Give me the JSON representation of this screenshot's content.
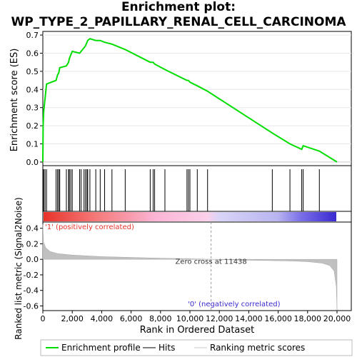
{
  "chart_data": {
    "type": "line",
    "title_line1": "Enrichment plot:",
    "title_line2": "WP_TYPE_2_PAPILLARY_RENAL_CELL_CARCINOMA",
    "xlabel": "Rank in Ordered Dataset",
    "ylabel_top": "Enrichment score (ES)",
    "ylabel_bottom": "Ranked list metric (Signal2Noise)",
    "x_ticks": [
      0,
      2000,
      4000,
      6000,
      8000,
      10000,
      12000,
      14000,
      16000,
      18000,
      20000
    ],
    "x_tick_labels": [
      "0",
      "2,000",
      "4,000",
      "6,000",
      "8,000",
      "10,000",
      "12,000",
      "14,000",
      "16,000",
      "18,000",
      "20,000"
    ],
    "xlim": [
      0,
      20000
    ],
    "es_ticks": [
      0.0,
      0.1,
      0.2,
      0.3,
      0.4,
      0.5,
      0.6,
      0.7
    ],
    "es_tick_labels": [
      "0.0",
      "0.1",
      "0.2",
      "0.3",
      "0.4",
      "0.5",
      "0.6",
      "0.7"
    ],
    "es_ylim": [
      -0.02,
      0.72
    ],
    "metric_ticks": [
      0.4,
      0.2,
      0.0,
      -0.2,
      -0.4,
      -0.6
    ],
    "metric_tick_labels": [
      "0.4",
      "0.2",
      "0.0",
      "-0.2",
      "-0.4",
      "-0.6"
    ],
    "metric_ylim": [
      -0.66,
      0.48
    ],
    "hits": [
      20,
      60,
      150,
      250,
      900,
      1000,
      1080,
      1150,
      1600,
      1750,
      1800,
      1900,
      2000,
      2500,
      2600,
      2800,
      2900,
      3000,
      3050,
      3200,
      3600,
      3900,
      4200,
      4700,
      5600,
      7300,
      7500,
      7600,
      8300,
      9800,
      9900,
      10000,
      10500,
      11200,
      15600,
      16800,
      17600,
      17700,
      18800
    ],
    "es_series": {
      "name": "Enrichment profile",
      "x": [
        0,
        20,
        60,
        150,
        250,
        900,
        1000,
        1080,
        1150,
        1600,
        1750,
        1800,
        1900,
        2000,
        2500,
        2600,
        2800,
        2900,
        3000,
        3050,
        3200,
        3600,
        3900,
        4200,
        4700,
        5600,
        7300,
        7500,
        7600,
        8300,
        9800,
        9900,
        10000,
        10500,
        11200,
        15600,
        16800,
        17600,
        17700,
        18800,
        20000
      ],
      "y": [
        0.0,
        0.2,
        0.28,
        0.35,
        0.43,
        0.45,
        0.48,
        0.49,
        0.52,
        0.53,
        0.55,
        0.57,
        0.59,
        0.61,
        0.6,
        0.61,
        0.63,
        0.64,
        0.66,
        0.67,
        0.68,
        0.67,
        0.67,
        0.66,
        0.65,
        0.62,
        0.55,
        0.55,
        0.54,
        0.51,
        0.45,
        0.45,
        0.44,
        0.42,
        0.39,
        0.16,
        0.1,
        0.07,
        0.09,
        0.06,
        0.0
      ]
    },
    "metric_series": {
      "name": "Ranking metric scores",
      "x": [
        0,
        50,
        200,
        500,
        1000,
        2000,
        3000,
        4000,
        6000,
        8000,
        10000,
        11438,
        13000,
        15000,
        17000,
        18000,
        19000,
        19500,
        19800,
        19950,
        20000
      ],
      "y": [
        0.45,
        0.22,
        0.15,
        0.1,
        0.075,
        0.055,
        0.045,
        0.035,
        0.025,
        0.015,
        0.007,
        0.0,
        -0.008,
        -0.015,
        -0.022,
        -0.03,
        -0.05,
        -0.08,
        -0.15,
        -0.35,
        -0.65
      ]
    },
    "zero_cross_label": "Zero cross at 11438",
    "zero_cross_x": 11438,
    "positive_label": "'1' (positively correlated)",
    "negative_label": "'0' (negatively correlated)",
    "positive_color": "#e8332a",
    "negative_color": "#3a2ad0",
    "es_line_color": "#00dd00",
    "legend": [
      {
        "label": "Enrichment profile",
        "color": "#00dd00"
      },
      {
        "label": "Hits",
        "color": "#000000"
      },
      {
        "label": "Ranking metric scores",
        "color": "#c8c8c8"
      }
    ]
  }
}
